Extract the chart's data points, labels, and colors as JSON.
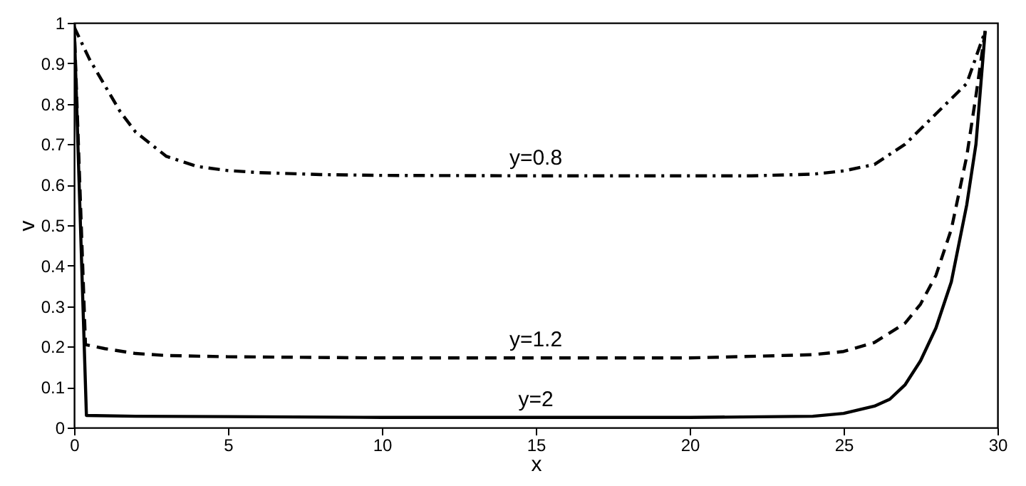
{
  "chart_data": {
    "type": "line",
    "xlabel": "x",
    "ylabel": "v",
    "xlim": [
      0,
      30
    ],
    "ylim": [
      0,
      1
    ],
    "xticks": [
      0,
      5,
      10,
      15,
      20,
      25,
      30
    ],
    "yticks": [
      0,
      0.1,
      0.2,
      0.3,
      0.4,
      0.5,
      0.6,
      0.7,
      0.8,
      0.9,
      1
    ],
    "grid": false,
    "legend": false,
    "marker": "none",
    "series": [
      {
        "name": "y=0.8",
        "color": "#000000",
        "line_style": "dashdot",
        "x": [
          0,
          0.5,
          1,
          1.5,
          2,
          2.5,
          3,
          4,
          5,
          6,
          8,
          10,
          15,
          20,
          22,
          24,
          25,
          26,
          27,
          28,
          29,
          29.6
        ],
        "values": [
          0.99,
          0.91,
          0.845,
          0.78,
          0.73,
          0.7,
          0.67,
          0.645,
          0.635,
          0.63,
          0.625,
          0.623,
          0.622,
          0.622,
          0.622,
          0.626,
          0.634,
          0.65,
          0.7,
          0.775,
          0.85,
          0.98
        ]
      },
      {
        "name": "y=1.2",
        "color": "#000000",
        "line_style": "dashed",
        "x": [
          0,
          0.37,
          1,
          2,
          3,
          5,
          10,
          15,
          20,
          24,
          25,
          26,
          27,
          27.5,
          28,
          28.5,
          29,
          29.3,
          29.6
        ],
        "values": [
          1,
          0.205,
          0.195,
          0.183,
          0.178,
          0.175,
          0.172,
          0.172,
          0.172,
          0.18,
          0.188,
          0.21,
          0.258,
          0.305,
          0.376,
          0.49,
          0.67,
          0.82,
          0.98
        ]
      },
      {
        "name": "y=2",
        "color": "#000000",
        "line_style": "solid",
        "x": [
          0,
          0.4,
          2,
          5,
          10,
          15,
          20,
          24,
          25,
          26,
          26.5,
          27,
          27.5,
          28,
          28.5,
          29,
          29.3,
          29.6
        ],
        "values": [
          1,
          0.03,
          0.028,
          0.027,
          0.025,
          0.025,
          0.025,
          0.028,
          0.035,
          0.053,
          0.07,
          0.106,
          0.165,
          0.246,
          0.36,
          0.55,
          0.7,
          0.98
        ]
      }
    ]
  }
}
